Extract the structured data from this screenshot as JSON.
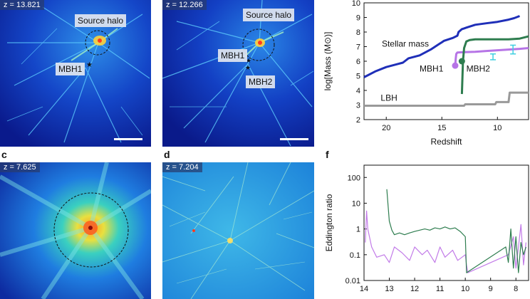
{
  "panels": {
    "a": {
      "z_label": "z = 13.821",
      "source_halo": "Source halo",
      "mbh1": "MBH1"
    },
    "b": {
      "z_label": "z = 12.266",
      "source_halo": "Source halo",
      "mbh1": "MBH1",
      "mbh2": "MBH2"
    },
    "c": {
      "letter": "c",
      "z_label": "z = 7.625"
    },
    "d": {
      "letter": "d",
      "z_label": "z = 7.204"
    },
    "f": {
      "letter": "f"
    }
  },
  "chart_data": [
    {
      "type": "line",
      "panel": "e",
      "xlabel": "Redshift",
      "ylabel": "log[Mass (M⊙)]",
      "x_reversed": true,
      "xlim": [
        22,
        7.2
      ],
      "ylim": [
        2,
        10
      ],
      "xticks": [
        20,
        15,
        10
      ],
      "yticks": [
        2,
        3,
        4,
        5,
        6,
        7,
        8,
        9,
        10
      ],
      "series": [
        {
          "name": "Stellar mass",
          "color": "#1f2fb8",
          "x": [
            22,
            21,
            20,
            19,
            18.5,
            18,
            17,
            16,
            15.2,
            15,
            14.8,
            14,
            13.6,
            13.5,
            13.2,
            13,
            12.8,
            12,
            11,
            10,
            9,
            8.5,
            8
          ],
          "y": [
            4.9,
            5.3,
            5.6,
            5.8,
            5.9,
            6.2,
            6.4,
            6.8,
            7.2,
            7.3,
            7.4,
            7.6,
            7.75,
            8.0,
            8.2,
            8.25,
            8.3,
            8.5,
            8.6,
            8.7,
            8.85,
            8.95,
            9.1
          ]
        },
        {
          "name": "MBH1",
          "color": "#b674e6",
          "x": [
            13.8,
            13.75,
            13.7,
            13.6,
            13.0,
            12.0,
            11.0,
            10.0,
            9.0,
            8.0,
            7.2
          ],
          "y": [
            5.7,
            6.2,
            6.5,
            6.6,
            6.62,
            6.65,
            6.7,
            6.75,
            6.8,
            6.85,
            6.9
          ]
        },
        {
          "name": "MBH2",
          "color": "#2e7d4f",
          "x": [
            13.2,
            13.1,
            13.0,
            12.8,
            12.5,
            12.0,
            11.0,
            10.0,
            9.0,
            8.0,
            7.2
          ],
          "y": [
            3.75,
            6.0,
            6.9,
            7.35,
            7.45,
            7.5,
            7.5,
            7.5,
            7.5,
            7.55,
            7.7
          ]
        },
        {
          "name": "LBH",
          "color": "#999999",
          "x": [
            22,
            16,
            13,
            12.9,
            10.2,
            10.1,
            9.0,
            8.9,
            7.2
          ],
          "y": [
            2.95,
            2.95,
            2.95,
            3.05,
            3.05,
            3.2,
            3.2,
            3.85,
            3.85
          ]
        }
      ],
      "observations": [
        {
          "x": 8.6,
          "y": 6.8,
          "err": 0.3
        },
        {
          "x": 10.4,
          "y": 6.3,
          "err": 0.2
        }
      ],
      "markers": [
        {
          "series": "MBH1",
          "x": 13.8,
          "y": 5.7
        },
        {
          "series": "MBH2",
          "x": 13.2,
          "y": 6.0
        }
      ]
    },
    {
      "type": "line",
      "panel": "f",
      "xlabel": "",
      "ylabel": "Eddington ratio",
      "x_reversed": true,
      "xlim": [
        14,
        7.5
      ],
      "ylim": [
        0.01,
        300
      ],
      "yscale": "log",
      "xticks": [
        14,
        13,
        12,
        11,
        10,
        9,
        8
      ],
      "yticks": [
        0.01,
        0.1,
        1,
        10,
        100
      ],
      "ytick_labels": [
        "0.01",
        "0.1",
        "1",
        "10",
        "100"
      ],
      "series": [
        {
          "name": "MBH1",
          "color": "#c27be8",
          "x": [
            13.95,
            13.9,
            13.85,
            13.7,
            13.5,
            13.2,
            13.0,
            12.8,
            12.5,
            12.2,
            12.0,
            11.7,
            11.5,
            11.2,
            11.0,
            10.8,
            10.5,
            10.3,
            10.0,
            9.95,
            9.9,
            8.3,
            8.1,
            8.0,
            7.9,
            7.8,
            7.7,
            7.6
          ],
          "y": [
            0.3,
            5,
            1.0,
            0.2,
            0.08,
            0.1,
            0.05,
            0.2,
            0.12,
            0.06,
            0.2,
            0.1,
            0.15,
            0.05,
            0.2,
            0.08,
            0.15,
            0.06,
            0.1,
            0.04,
            0.02,
            0.1,
            0.5,
            0.03,
            0.2,
            1.5,
            0.04,
            0.3
          ]
        },
        {
          "name": "MBH2",
          "color": "#2e7d4f",
          "x": [
            13.1,
            13.05,
            13.0,
            12.9,
            12.8,
            12.6,
            12.4,
            12.2,
            12.0,
            11.8,
            11.6,
            11.4,
            11.2,
            11.0,
            10.8,
            10.6,
            10.4,
            10.2,
            10.0,
            9.95,
            8.4,
            8.3,
            8.2,
            8.1,
            8.0,
            7.9,
            7.8,
            7.7,
            7.6
          ],
          "y": [
            35,
            8,
            2.0,
            0.9,
            0.6,
            0.7,
            0.6,
            0.7,
            0.8,
            0.9,
            1.0,
            0.9,
            1.1,
            1.0,
            1.2,
            1.0,
            1.1,
            0.8,
            0.5,
            0.02,
            0.2,
            0.05,
            1.0,
            0.03,
            0.5,
            0.02,
            0.3,
            0.1,
            0.2
          ]
        }
      ]
    }
  ]
}
